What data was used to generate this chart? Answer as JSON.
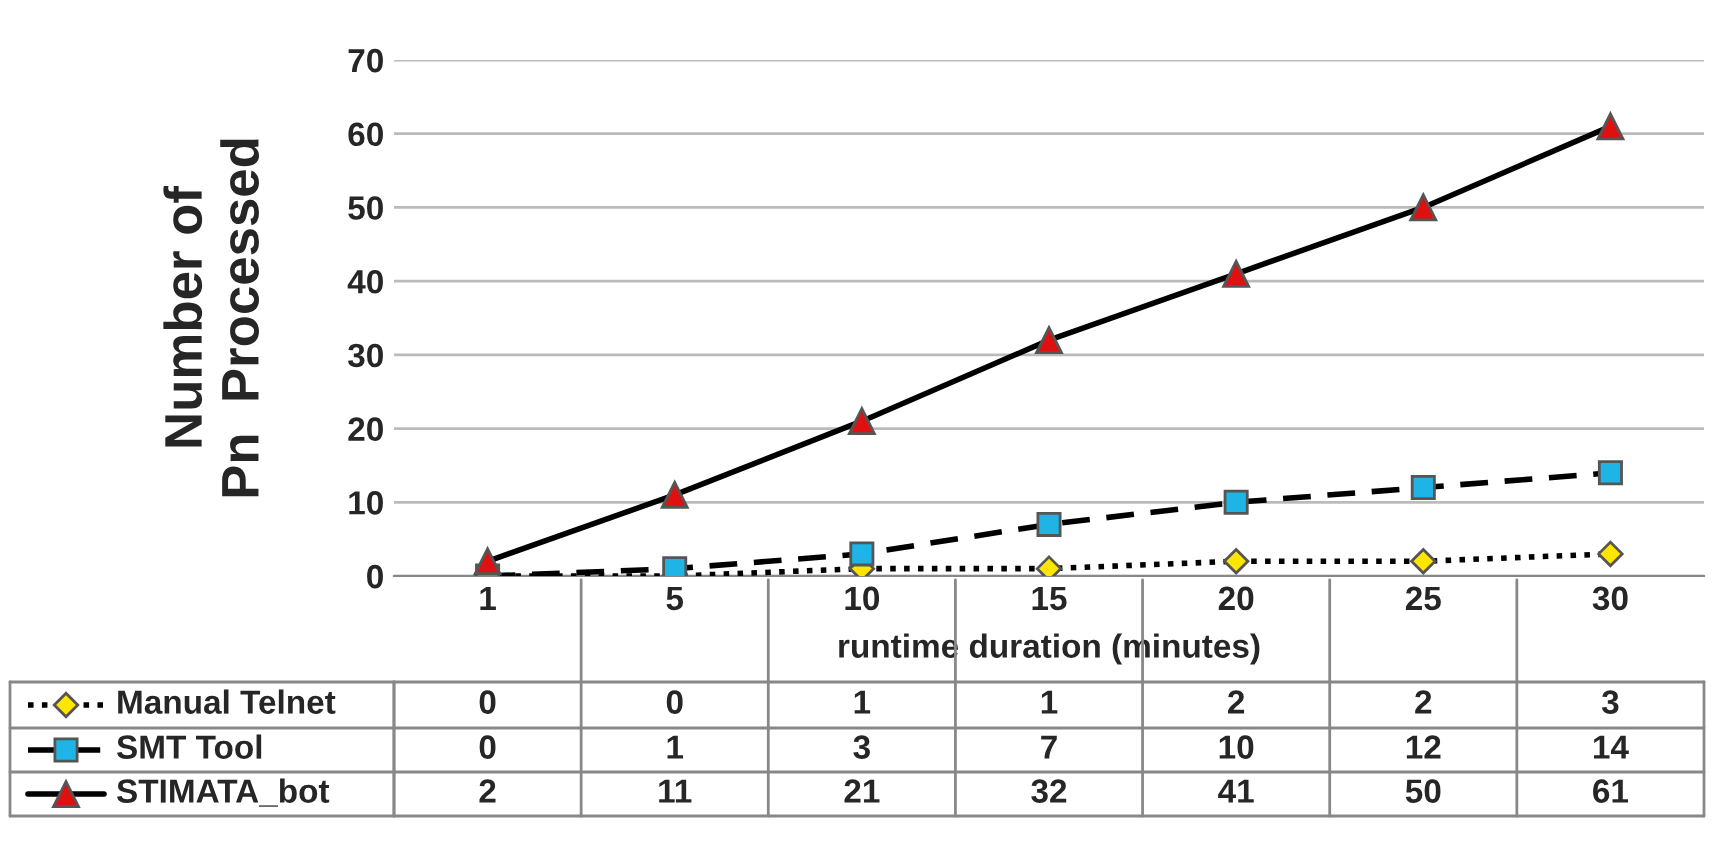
{
  "chart_data": {
    "type": "line",
    "ylabel": "Number of\nPn  Processed",
    "xlabel": "runtime duration (minutes)",
    "categories": [
      "1",
      "5",
      "10",
      "15",
      "20",
      "25",
      "30"
    ],
    "ylim": [
      0,
      70
    ],
    "yticks": [
      0,
      10,
      20,
      30,
      40,
      50,
      60,
      70
    ],
    "grid": "y",
    "legend": "bottom",
    "data_labels": true,
    "series": [
      {
        "name": "Manual Telnet",
        "color": "#ffe600",
        "marker": "diamond",
        "line_style": "dotted",
        "values": [
          0,
          0,
          1,
          1,
          2,
          2,
          3
        ]
      },
      {
        "name": "SMT Tool",
        "color": "#1eb4e6",
        "marker": "square",
        "line_style": "dashed",
        "values": [
          0,
          1,
          3,
          7,
          10,
          12,
          14
        ]
      },
      {
        "name": "STIMATA_bot",
        "color": "#e01010",
        "marker": "triangle",
        "line_style": "solid",
        "values": [
          2,
          11,
          21,
          32,
          41,
          50,
          61
        ]
      }
    ]
  }
}
